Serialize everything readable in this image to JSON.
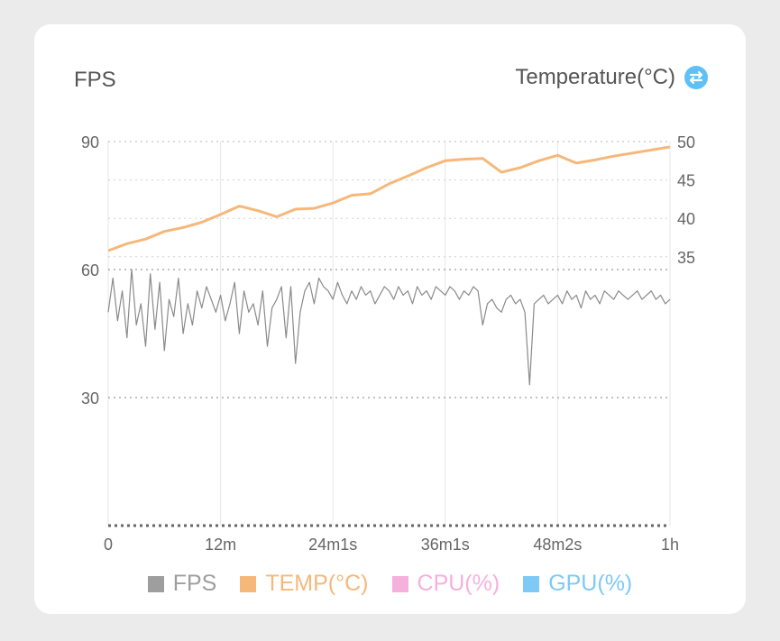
{
  "header": {
    "left_title": "FPS",
    "right_title": "Temperature(°C)",
    "right_icon": "swap-icon"
  },
  "colors": {
    "fps": "#9e9e9e",
    "temp": "#f5b87a",
    "cpu": "#f5b0dc",
    "gpu": "#7ec9f5",
    "fps_line": "#8a8a8a"
  },
  "legend": [
    {
      "label": "FPS",
      "color": "#9e9e9e",
      "text_color": "#9e9e9e"
    },
    {
      "label": "TEMP(°C)",
      "color": "#f5b87a",
      "text_color": "#f5b87a"
    },
    {
      "label": "CPU(%)",
      "color": "#f5b0dc",
      "text_color": "#f5b0dc"
    },
    {
      "label": "GPU(%)",
      "color": "#7ec9f5",
      "text_color": "#7ec9f5"
    }
  ],
  "chart_data": {
    "type": "line",
    "title": "",
    "xlabel": "",
    "x_ticks": [
      "0",
      "12m",
      "24m1s",
      "36m1s",
      "48m2s",
      "1h"
    ],
    "xlim_minutes": [
      0,
      60
    ],
    "y_left": {
      "label": "FPS",
      "ticks": [
        "30",
        "60",
        "90"
      ],
      "range": [
        0,
        90
      ]
    },
    "y_right": {
      "label": "Temperature(°C)",
      "ticks": [
        "35",
        "40",
        "45",
        "50"
      ],
      "range": [
        0,
        50
      ]
    },
    "grid": true,
    "legend_position": "bottom",
    "series": [
      {
        "name": "TEMP(°C)",
        "axis": "right",
        "x": [
          0,
          2,
          4,
          6,
          8,
          10,
          12,
          14,
          16,
          18,
          20,
          22,
          24,
          26,
          28,
          30,
          32,
          34,
          36,
          38,
          40,
          42,
          44,
          46,
          48,
          50,
          52,
          54,
          56,
          58,
          60
        ],
        "values": [
          35.8,
          36.7,
          37.3,
          38.3,
          38.8,
          39.5,
          40.5,
          41.6,
          41.0,
          40.2,
          41.2,
          41.3,
          42.0,
          43.0,
          43.2,
          44.5,
          45.5,
          46.6,
          47.5,
          47.7,
          47.8,
          46.0,
          46.6,
          47.5,
          48.2,
          47.2,
          47.6,
          48.1,
          48.5,
          48.9,
          49.3
        ]
      },
      {
        "name": "FPS",
        "axis": "left",
        "x": [
          0,
          0.5,
          1,
          1.5,
          2,
          2.5,
          3,
          3.5,
          4,
          4.5,
          5,
          5.5,
          6,
          6.5,
          7,
          7.5,
          8,
          8.5,
          9,
          9.5,
          10,
          10.5,
          11,
          11.5,
          12,
          12.5,
          13,
          13.5,
          14,
          14.5,
          15,
          15.5,
          16,
          16.5,
          17,
          17.5,
          18,
          18.5,
          19,
          19.5,
          20,
          20.5,
          21,
          21.5,
          22,
          22.5,
          23,
          23.5,
          24,
          24.5,
          25,
          25.5,
          26,
          26.5,
          27,
          27.5,
          28,
          28.5,
          29,
          29.5,
          30,
          30.5,
          31,
          31.5,
          32,
          32.5,
          33,
          33.5,
          34,
          34.5,
          35,
          35.5,
          36,
          36.5,
          37,
          37.5,
          38,
          38.5,
          39,
          39.5,
          40,
          40.5,
          41,
          41.5,
          42,
          42.5,
          43,
          43.5,
          44,
          44.5,
          45,
          45.5,
          46,
          46.5,
          47,
          47.5,
          48,
          48.5,
          49,
          49.5,
          50,
          50.5,
          51,
          51.5,
          52,
          52.5,
          53,
          53.5,
          54,
          54.5,
          55,
          55.5,
          56,
          56.5,
          57,
          57.5,
          58,
          58.5,
          59,
          59.5,
          60
        ],
        "values": [
          50,
          58,
          48,
          55,
          44,
          60,
          47,
          52,
          42,
          59,
          46,
          57,
          41,
          53,
          49,
          58,
          45,
          52,
          47,
          55,
          51,
          56,
          53,
          50,
          54,
          48,
          52,
          57,
          45,
          55,
          50,
          52,
          47,
          55,
          42,
          51,
          53,
          56,
          44,
          56,
          38,
          50,
          55,
          57,
          52,
          58,
          56,
          55,
          53,
          57,
          54,
          52,
          55,
          53,
          56,
          54,
          55,
          52,
          54,
          56,
          55,
          53,
          56,
          54,
          55,
          52,
          56,
          54,
          55,
          53,
          56,
          55,
          54,
          56,
          55,
          53,
          55,
          54,
          56,
          55,
          47,
          52,
          53,
          51,
          50,
          53,
          54,
          52,
          53,
          50,
          33,
          52,
          53,
          54,
          52,
          53,
          54,
          52,
          55,
          53,
          54,
          51,
          55,
          53,
          54,
          52,
          55,
          54,
          53,
          55,
          54,
          53,
          54,
          55,
          53,
          54,
          55,
          53,
          54,
          52,
          53
        ]
      }
    ]
  }
}
